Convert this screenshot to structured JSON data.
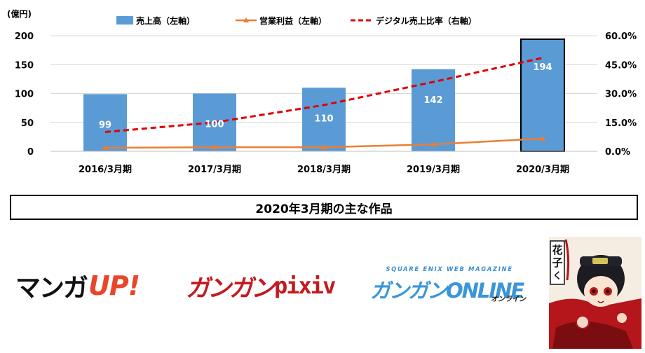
{
  "chart_data": {
    "type": "bar",
    "y_unit_label": "(億円)",
    "categories": [
      "2016/3月期",
      "2017/3月期",
      "2018/3月期",
      "2019/3月期",
      "2020/3月期"
    ],
    "series": [
      {
        "name": "売上高（左軸）",
        "kind": "bar",
        "axis": "left",
        "color": "#5b9bd5",
        "values": [
          99,
          100,
          110,
          142,
          194
        ],
        "data_labels": [
          "99",
          "100",
          "110",
          "142",
          "194"
        ],
        "highlight_last": true
      },
      {
        "name": "営業利益（左軸）",
        "kind": "line",
        "axis": "left",
        "color": "#ed7d31",
        "values": [
          6,
          7,
          7,
          12,
          22
        ]
      },
      {
        "name": "デジタル売上比率（右軸）",
        "kind": "dashed-line",
        "axis": "right",
        "color": "#e00000",
        "values": [
          0.1,
          0.15,
          0.24,
          0.36,
          0.485
        ]
      }
    ],
    "y_left": {
      "range": [
        0,
        200
      ],
      "ticks": [
        "0",
        "50",
        "100",
        "150",
        "200"
      ]
    },
    "y_right": {
      "range": [
        0,
        0.6
      ],
      "ticks": [
        "0.0%",
        "15.0%",
        "30.0%",
        "45.0%",
        "60.0%"
      ]
    },
    "grid": true,
    "legend_position": "top"
  },
  "banner": {
    "title": "2020年3月期の主な作品"
  },
  "logos": {
    "manga_up": {
      "jp": "マンガ",
      "en": "UP!"
    },
    "gangan_pixiv": {
      "jp": "ガンガン",
      "en": "pixiv"
    },
    "gangan_online": {
      "top": "SQUARE ENIX WEB MAGAZINE",
      "main": "ガンガンONLINE",
      "sub": "オンライン"
    },
    "cover": {
      "title": "地縛少年花子くん"
    }
  }
}
